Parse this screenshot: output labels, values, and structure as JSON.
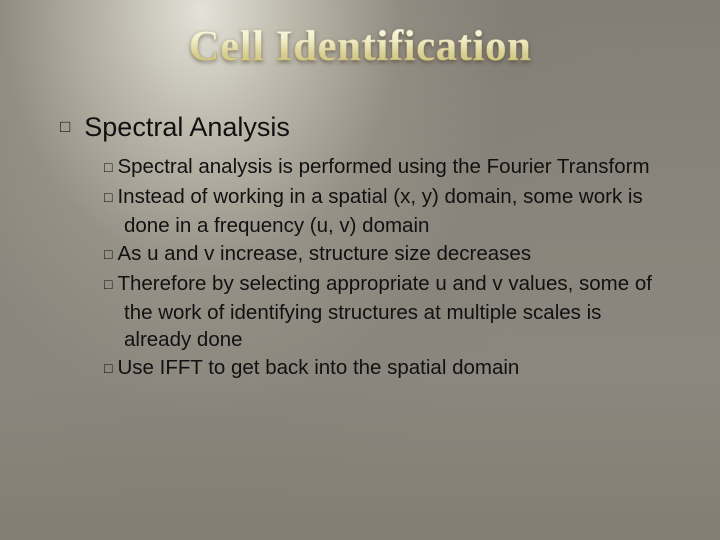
{
  "title": "Cell Identification",
  "section": {
    "bullet_glyph": "□",
    "heading": "Spectral Analysis",
    "sub_bullet_glyph": "□",
    "points": [
      "Spectral analysis is performed using the Fourier Transform",
      "Instead of working in a spatial (x, y) domain, some work is done in a frequency (u, v) domain",
      "As u and v increase, structure size decreases",
      "Therefore by selecting appropriate u and v values, some of the work of identifying structures at multiple scales is already done",
      "Use IFFT to get back into the spatial domain"
    ]
  },
  "style": {
    "title_gradient_top": "#fffef0",
    "title_gradient_bottom": "#c9bc72",
    "background_base": "#8a857c",
    "text_color": "#111111",
    "title_fontsize_pt": 32,
    "heading_fontsize_pt": 20,
    "body_fontsize_pt": 15
  }
}
